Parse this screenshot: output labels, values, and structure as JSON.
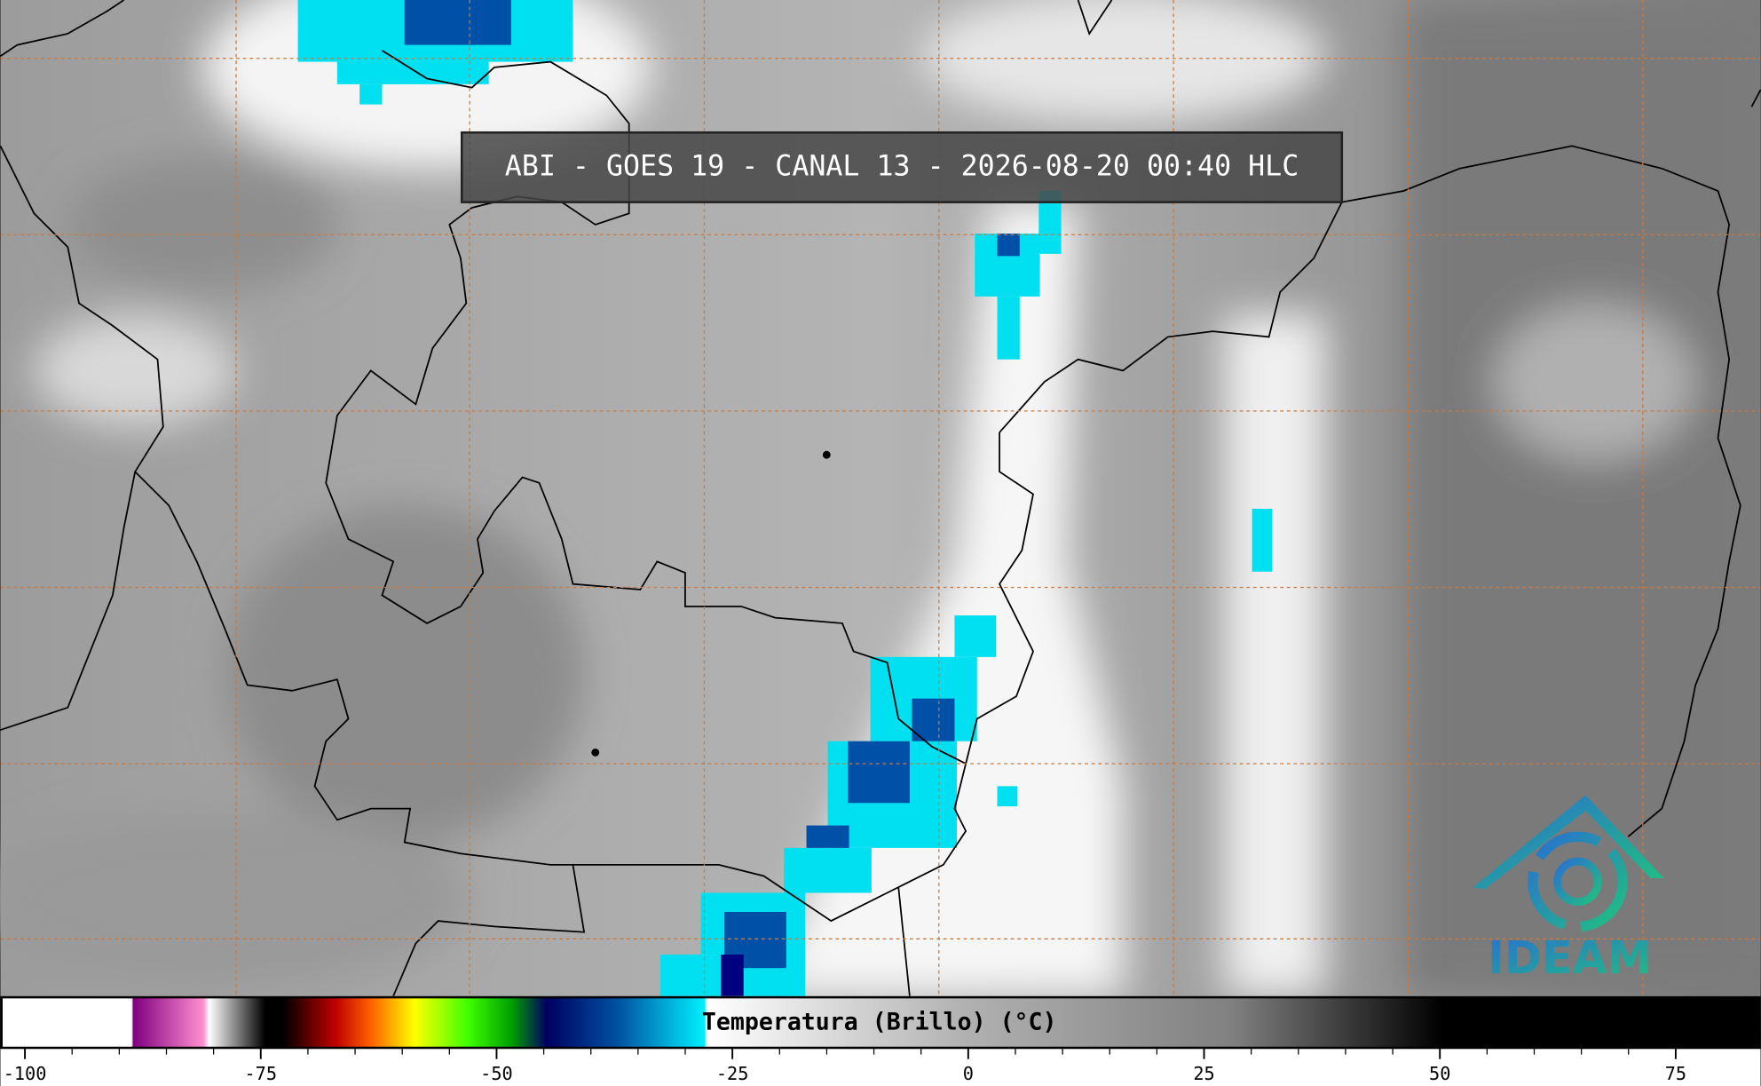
{
  "title": "ABI - GOES 19 - CANAL 13 - 2026-08-20 00:40 HLC",
  "colorbar": {
    "label": "Temperatura (Brillo) (°C)",
    "xlim": [
      -102.6,
      84
    ],
    "xticks": [
      -100,
      -75,
      -50,
      -25,
      0,
      25,
      50,
      75
    ]
  },
  "logo": {
    "text": "IDEAM"
  }
}
